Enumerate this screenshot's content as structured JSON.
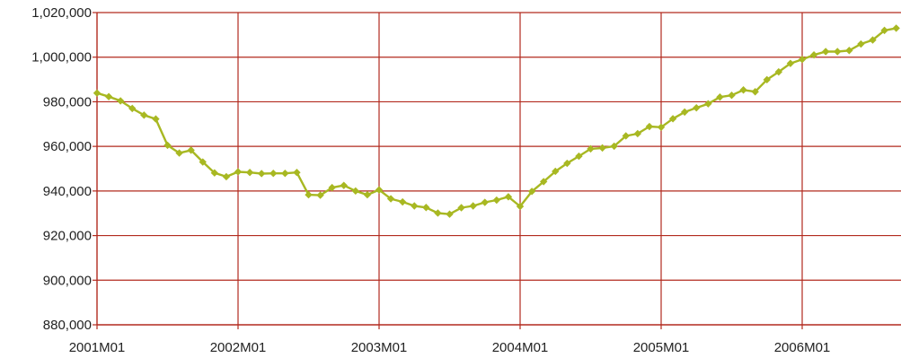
{
  "chart_data": {
    "type": "line",
    "title": "",
    "xlabel": "",
    "ylabel": "",
    "ylim": [
      880000,
      1020000
    ],
    "y_ticks": [
      880000,
      900000,
      920000,
      940000,
      960000,
      980000,
      1000000,
      1020000
    ],
    "y_tick_labels": [
      "880,000",
      "900,000",
      "920,000",
      "940,000",
      "960,000",
      "980,000",
      "1,000,000",
      "1,020,000"
    ],
    "x_ticks": [
      "2001M01",
      "2002M01",
      "2003M01",
      "2004M01",
      "2005M01",
      "2006M01"
    ],
    "grid": true,
    "legend": "none",
    "colors": {
      "series": "#a8b822",
      "grid": "#b22a1e",
      "text": "#222222"
    },
    "series": [
      {
        "x": [
          "2001M01",
          "2001M02",
          "2001M03",
          "2001M04",
          "2001M05",
          "2001M06",
          "2001M07",
          "2001M08",
          "2001M09",
          "2001M10",
          "2001M11",
          "2001M12",
          "2002M01",
          "2002M02",
          "2002M03",
          "2002M04",
          "2002M05",
          "2002M06",
          "2002M07",
          "2002M08",
          "2002M09",
          "2002M10",
          "2002M11",
          "2002M12",
          "2003M01",
          "2003M02",
          "2003M03",
          "2003M04",
          "2003M05",
          "2003M06",
          "2003M07",
          "2003M08",
          "2003M09",
          "2003M10",
          "2003M11",
          "2003M12",
          "2004M01",
          "2004M02",
          "2004M03",
          "2004M04",
          "2004M05",
          "2004M06",
          "2004M07",
          "2004M08",
          "2004M09",
          "2004M10",
          "2004M11",
          "2004M12",
          "2005M01",
          "2005M02",
          "2005M03",
          "2005M04",
          "2005M05",
          "2005M06",
          "2005M07",
          "2005M08",
          "2005M09",
          "2005M10",
          "2005M11",
          "2005M12",
          "2006M01",
          "2006M02",
          "2006M03",
          "2006M04",
          "2006M05",
          "2006M06",
          "2006M07",
          "2006M08",
          "2006M09"
        ],
        "values": [
          983900,
          982300,
          980400,
          977000,
          974000,
          972300,
          960500,
          957000,
          958300,
          953000,
          948100,
          946400,
          948600,
          948300,
          947800,
          947900,
          947900,
          948300,
          938300,
          938100,
          941500,
          942500,
          940000,
          938300,
          940500,
          936500,
          935100,
          933300,
          932600,
          930100,
          929600,
          932500,
          933300,
          934900,
          935900,
          937400,
          933100,
          939800,
          944200,
          948800,
          952400,
          955600,
          958900,
          959300,
          960100,
          964700,
          965700,
          968900,
          968600,
          972400,
          975400,
          977300,
          979100,
          982100,
          982900,
          985300,
          984500,
          989900,
          993400,
          997200,
          999000,
          1001000,
          1002500,
          1002500,
          1003000,
          1005900,
          1007700,
          1012000,
          1013000
        ]
      }
    ]
  }
}
